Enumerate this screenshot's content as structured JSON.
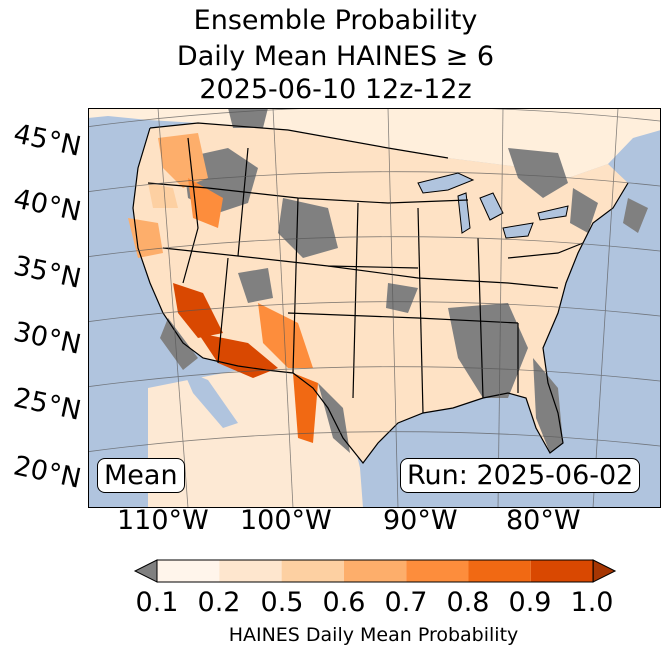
{
  "title": {
    "line1": "Ensemble Probability",
    "line2": "Daily Mean HAINES ≥ 6",
    "line3": "2025-06-10 12z-12z"
  },
  "map": {
    "lat_labels": [
      "45°N",
      "40°N",
      "35°N",
      "30°N",
      "25°N",
      "20°N"
    ],
    "lon_labels": [
      "110°W",
      "100°W",
      "90°W",
      "80°W"
    ],
    "stat_label": "Mean",
    "run_label": "Run: 2025-06-02",
    "ocean_color": "#b0c4de",
    "land_low_color": "#808080"
  },
  "colorbar": {
    "ticks": [
      "0.1",
      "0.2",
      "0.5",
      "0.6",
      "0.7",
      "0.8",
      "0.9",
      "1.0"
    ],
    "colors": [
      "#fff5eb",
      "#fee6ce",
      "#fdd0a2",
      "#fdae6b",
      "#fd8d3c",
      "#f16913",
      "#d94801"
    ],
    "under_color": "#808080",
    "over_color": "#a63603",
    "label": "HAINES Daily Mean Probability"
  }
}
